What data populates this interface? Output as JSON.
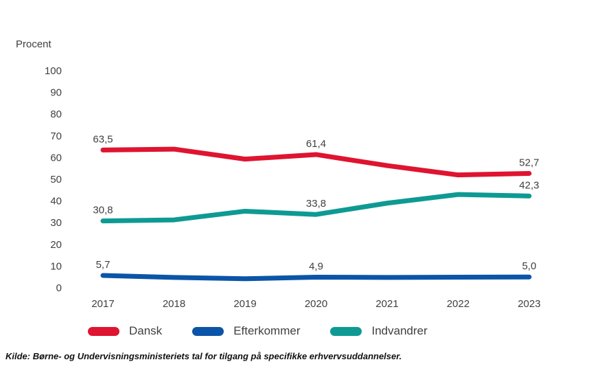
{
  "chart_data": {
    "type": "line",
    "x": [
      "2017",
      "2018",
      "2019",
      "2020",
      "2021",
      "2022",
      "2023"
    ],
    "series": [
      {
        "name": "Dansk",
        "color": "#df1430",
        "values": [
          63.5,
          63.9,
          59.3,
          61.4,
          56.3,
          52.0,
          52.7
        ],
        "point_labels": {
          "0": "63,5",
          "3": "61,4",
          "6": "52,7"
        }
      },
      {
        "name": "Efterkommer",
        "color": "#0b55a8",
        "values": [
          5.7,
          4.8,
          4.2,
          4.9,
          4.8,
          4.9,
          5.0
        ],
        "point_labels": {
          "0": "5,7",
          "3": "4,9",
          "6": "5,0"
        }
      },
      {
        "name": "Indvandrer",
        "color": "#0e9a93",
        "values": [
          30.8,
          31.3,
          35.3,
          33.8,
          39.0,
          43.0,
          42.3
        ],
        "point_labels": {
          "0": "30,8",
          "3": "33,8",
          "6": "42,3"
        }
      }
    ],
    "ylabel": "Procent",
    "ylim": [
      0,
      100
    ],
    "yticks": [
      100,
      90,
      80,
      70,
      60,
      50,
      40,
      30,
      20,
      10,
      0
    ],
    "grid": false,
    "legend_position": "bottom"
  },
  "source": {
    "text": "Kilde: Børne- og Undervisningsministeriets tal for tilgang på specifikke erhvervsuddannelser."
  },
  "colors": {
    "text": "#3f3f3f",
    "dansk": "#df1430",
    "efterkommer": "#0b55a8",
    "indvandrer": "#0e9a93"
  }
}
